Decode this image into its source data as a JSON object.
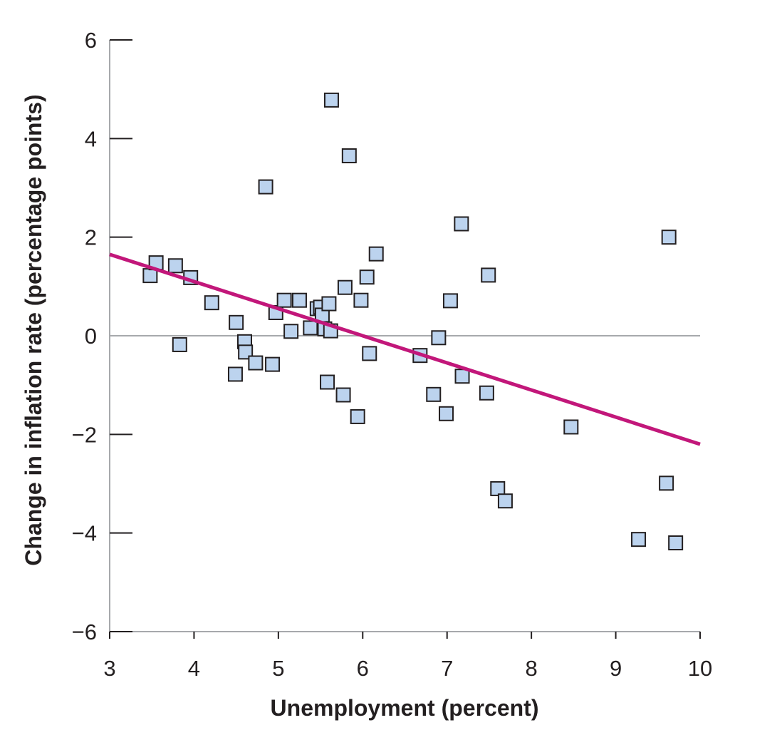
{
  "chart_data": {
    "type": "scatter",
    "title": "",
    "xlabel": "Unemployment (percent)",
    "ylabel": "Change in inflation rate (percentage points)",
    "xlim": [
      3,
      10
    ],
    "ylim": [
      -6,
      6
    ],
    "x_ticks": [
      3,
      4,
      5,
      6,
      7,
      8,
      9,
      10
    ],
    "y_ticks": [
      6,
      4,
      2,
      0,
      -2,
      -4,
      -6
    ],
    "y_tick_labels": [
      "6",
      "4",
      "2",
      "0",
      "−2",
      "−4",
      "−6"
    ],
    "zero_line": true,
    "grid": false,
    "legend": "none",
    "colors": {
      "marker_fill": "#bcd3ee",
      "marker_stroke": "#231f20",
      "trend_line": "#c2177a",
      "axis": "#a7a9ac",
      "zero_line": "#a7a9ac"
    },
    "trend_line": {
      "x": [
        3,
        10
      ],
      "y": [
        1.65,
        -2.2
      ]
    },
    "points": [
      {
        "x": 3.48,
        "y": 1.22
      },
      {
        "x": 3.55,
        "y": 1.48
      },
      {
        "x": 3.78,
        "y": 1.42
      },
      {
        "x": 3.83,
        "y": -0.18
      },
      {
        "x": 3.96,
        "y": 1.18
      },
      {
        "x": 4.21,
        "y": 0.67
      },
      {
        "x": 4.5,
        "y": 0.27
      },
      {
        "x": 4.49,
        "y": -0.78
      },
      {
        "x": 4.6,
        "y": -0.12
      },
      {
        "x": 4.61,
        "y": -0.33
      },
      {
        "x": 4.73,
        "y": -0.55
      },
      {
        "x": 4.85,
        "y": 3.02
      },
      {
        "x": 4.93,
        "y": -0.58
      },
      {
        "x": 4.97,
        "y": 0.47
      },
      {
        "x": 5.07,
        "y": 0.72
      },
      {
        "x": 5.15,
        "y": 0.09
      },
      {
        "x": 5.25,
        "y": 0.72
      },
      {
        "x": 5.38,
        "y": 0.16
      },
      {
        "x": 5.46,
        "y": 0.55
      },
      {
        "x": 5.5,
        "y": 0.58
      },
      {
        "x": 5.52,
        "y": 0.42
      },
      {
        "x": 5.55,
        "y": 0.14
      },
      {
        "x": 5.58,
        "y": -0.94
      },
      {
        "x": 5.6,
        "y": 0.65
      },
      {
        "x": 5.62,
        "y": 0.1
      },
      {
        "x": 5.63,
        "y": 4.78
      },
      {
        "x": 5.77,
        "y": -1.2
      },
      {
        "x": 5.79,
        "y": 0.98
      },
      {
        "x": 5.84,
        "y": 3.65
      },
      {
        "x": 5.94,
        "y": -1.64
      },
      {
        "x": 5.98,
        "y": 0.72
      },
      {
        "x": 6.05,
        "y": 1.19
      },
      {
        "x": 6.08,
        "y": -0.36
      },
      {
        "x": 6.16,
        "y": 1.66
      },
      {
        "x": 6.68,
        "y": -0.4
      },
      {
        "x": 6.84,
        "y": -1.19
      },
      {
        "x": 6.9,
        "y": -0.04
      },
      {
        "x": 6.99,
        "y": -1.58
      },
      {
        "x": 7.04,
        "y": 0.71
      },
      {
        "x": 7.17,
        "y": 2.27
      },
      {
        "x": 7.18,
        "y": -0.82
      },
      {
        "x": 7.47,
        "y": -1.16
      },
      {
        "x": 7.49,
        "y": 1.23
      },
      {
        "x": 7.6,
        "y": -3.1
      },
      {
        "x": 7.69,
        "y": -3.35
      },
      {
        "x": 8.47,
        "y": -1.85
      },
      {
        "x": 9.27,
        "y": -4.13
      },
      {
        "x": 9.6,
        "y": -2.99
      },
      {
        "x": 9.63,
        "y": 2.0
      },
      {
        "x": 9.71,
        "y": -4.2
      }
    ]
  }
}
